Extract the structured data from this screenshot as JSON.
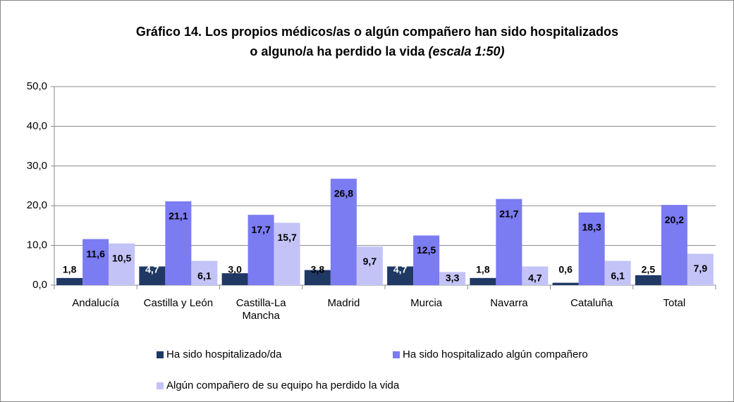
{
  "chart_data": {
    "type": "bar",
    "title": [
      "Gráfico 14. Los propios médicos/as o algún compañero han sido hospitalizados",
      "o alguno/a ha perdido la vida"
    ],
    "title_note": "(escala 1:50)",
    "categories": [
      "Andalucía",
      "Castilla y León",
      "Castilla-La Mancha",
      "Madrid",
      "Murcia",
      "Navarra",
      "Cataluña",
      "Total"
    ],
    "series": [
      {
        "name": "Ha sido hospitalizado/da",
        "color": "#1f3864",
        "values": [
          1.8,
          4.7,
          3.0,
          3.8,
          4.7,
          1.8,
          0.6,
          2.5
        ],
        "value_labels": [
          "1,8",
          "4,7",
          "3,0",
          "3,8",
          "4,7",
          "1,8",
          "0,6",
          "2,5"
        ]
      },
      {
        "name": "Ha sido hospitalizado algún compañero",
        "color": "#7b7bf2",
        "values": [
          11.6,
          21.1,
          17.7,
          26.8,
          12.5,
          21.7,
          18.3,
          20.2
        ],
        "value_labels": [
          "11,6",
          "21,1",
          "17,7",
          "26,8",
          "12,5",
          "21,7",
          "18,3",
          "20,2"
        ]
      },
      {
        "name": "Algún compañero de su equipo ha perdido la vida",
        "color": "#c3c3f8",
        "values": [
          10.5,
          6.1,
          15.7,
          9.7,
          3.3,
          4.7,
          6.1,
          7.9
        ],
        "value_labels": [
          "10,5",
          "6,1",
          "15,7",
          "9,7",
          "3,3",
          "4,7",
          "6,1",
          "7,9"
        ]
      }
    ],
    "ylim": [
      0,
      50
    ],
    "yticks": [
      {
        "value": 0,
        "label": "0,0"
      },
      {
        "value": 10,
        "label": "10,0"
      },
      {
        "value": 20,
        "label": "20,0"
      },
      {
        "value": 30,
        "label": "30,0"
      },
      {
        "value": 40,
        "label": "40,0"
      },
      {
        "value": 50,
        "label": "50,0"
      }
    ],
    "grid": true
  }
}
